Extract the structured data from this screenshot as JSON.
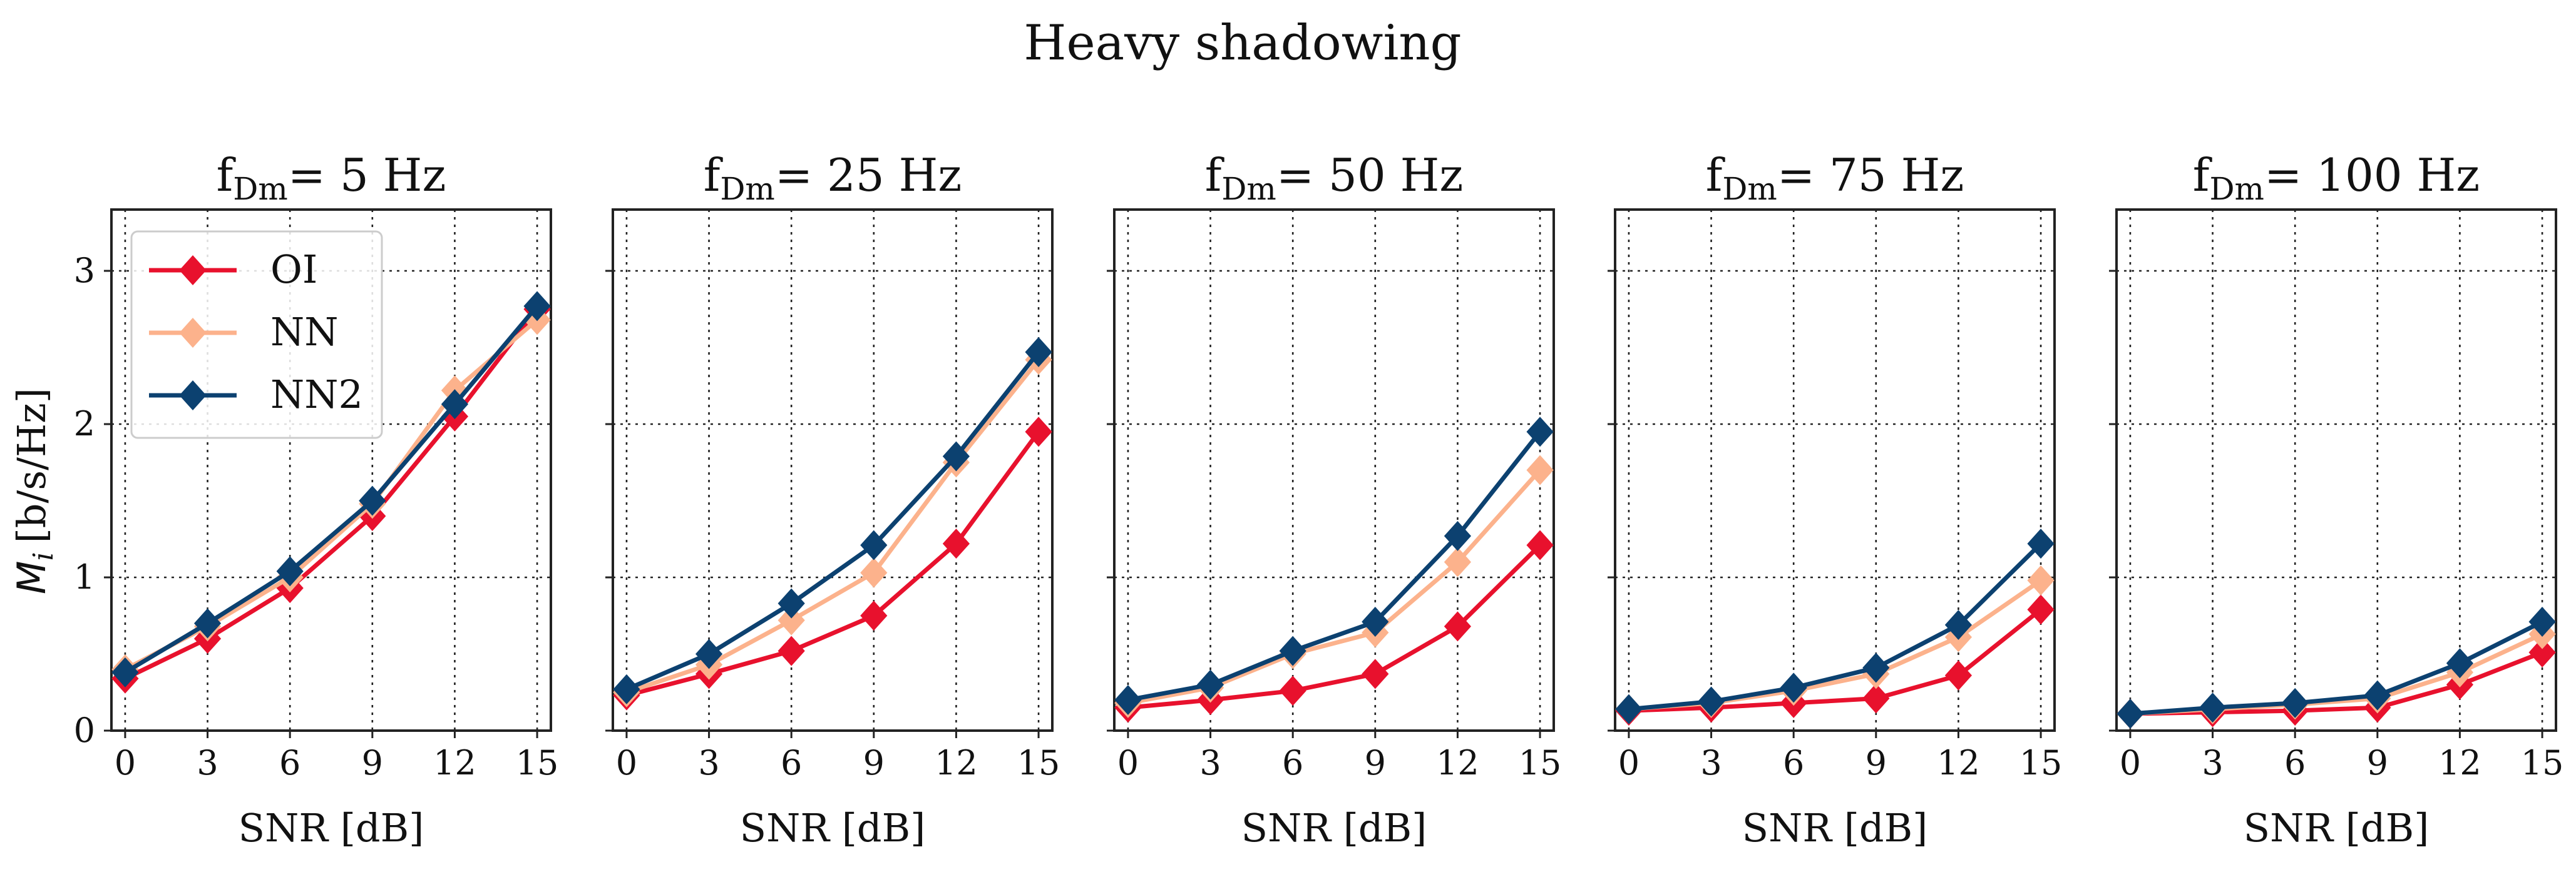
{
  "chart_data": {
    "type": "line",
    "title": "Heavy shadowing",
    "xlabel": "SNR [dB]",
    "ylabel_symbol": "M",
    "ylabel_subscript": "i",
    "ylabel_units": "[b/s/Hz]",
    "x": [
      0,
      3,
      6,
      9,
      12,
      15
    ],
    "xlim": [
      -0.5,
      15.5
    ],
    "ylim": [
      0,
      3.4
    ],
    "yticks": [
      0,
      1,
      2,
      3
    ],
    "grid": true,
    "legend_position": "upper-left of first panel",
    "series_styles": [
      {
        "name": "OI",
        "color": "#e8112d"
      },
      {
        "name": "NN",
        "color": "#fcb28c"
      },
      {
        "name": "NN2",
        "color": "#0c4170"
      }
    ],
    "panels": [
      {
        "title_prefix": "f",
        "title_sub": "Dm",
        "title_suffix": "= 5 Hz",
        "series": [
          {
            "name": "OI",
            "values": [
              0.34,
              0.6,
              0.93,
              1.4,
              2.05,
              2.75
            ]
          },
          {
            "name": "NN",
            "values": [
              0.4,
              0.68,
              1.0,
              1.48,
              2.22,
              2.68
            ]
          },
          {
            "name": "NN2",
            "values": [
              0.38,
              0.7,
              1.04,
              1.5,
              2.13,
              2.77
            ]
          }
        ]
      },
      {
        "title_prefix": "f",
        "title_sub": "Dm",
        "title_suffix": "= 25 Hz",
        "series": [
          {
            "name": "OI",
            "values": [
              0.23,
              0.37,
              0.52,
              0.75,
              1.22,
              1.95
            ]
          },
          {
            "name": "NN",
            "values": [
              0.25,
              0.43,
              0.72,
              1.03,
              1.75,
              2.42
            ]
          },
          {
            "name": "NN2",
            "values": [
              0.27,
              0.5,
              0.83,
              1.21,
              1.79,
              2.47
            ]
          }
        ]
      },
      {
        "title_prefix": "f",
        "title_sub": "Dm",
        "title_suffix": "= 50 Hz",
        "series": [
          {
            "name": "OI",
            "values": [
              0.15,
              0.2,
              0.26,
              0.37,
              0.68,
              1.21
            ]
          },
          {
            "name": "NN",
            "values": [
              0.18,
              0.28,
              0.5,
              0.64,
              1.1,
              1.7
            ]
          },
          {
            "name": "NN2",
            "values": [
              0.2,
              0.3,
              0.52,
              0.71,
              1.27,
              1.95
            ]
          }
        ]
      },
      {
        "title_prefix": "f",
        "title_sub": "Dm",
        "title_suffix": "= 75 Hz",
        "series": [
          {
            "name": "OI",
            "values": [
              0.13,
              0.15,
              0.18,
              0.21,
              0.36,
              0.79
            ]
          },
          {
            "name": "NN",
            "values": [
              0.14,
              0.18,
              0.26,
              0.37,
              0.61,
              0.98
            ]
          },
          {
            "name": "NN2",
            "values": [
              0.14,
              0.19,
              0.28,
              0.41,
              0.69,
              1.22
            ]
          }
        ]
      },
      {
        "title_prefix": "f",
        "title_sub": "Dm",
        "title_suffix": "= 100 Hz",
        "series": [
          {
            "name": "OI",
            "values": [
              0.11,
              0.12,
              0.13,
              0.15,
              0.3,
              0.51
            ]
          },
          {
            "name": "NN",
            "values": [
              0.11,
              0.14,
              0.17,
              0.21,
              0.38,
              0.63
            ]
          },
          {
            "name": "NN2",
            "values": [
              0.11,
              0.15,
              0.18,
              0.23,
              0.44,
              0.71
            ]
          }
        ]
      }
    ]
  }
}
